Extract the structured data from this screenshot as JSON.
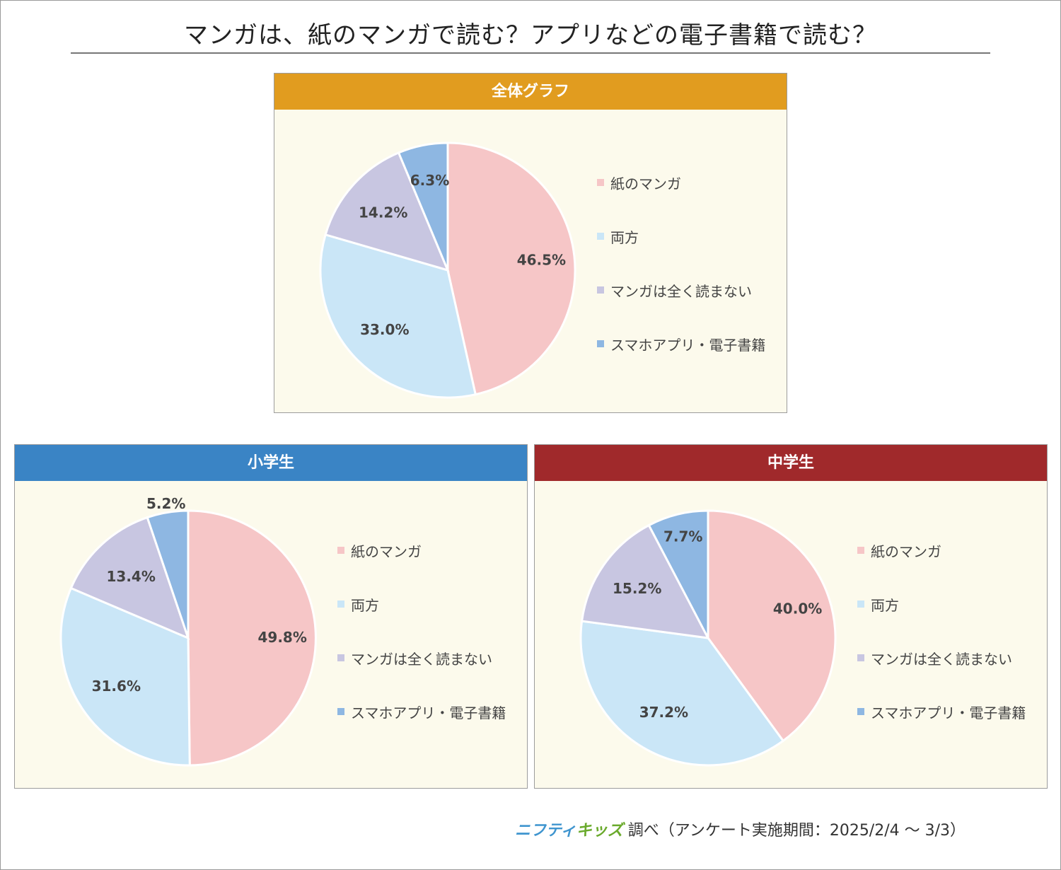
{
  "title": "マンガは、紙のマンガで読む？アプリなどの電子書籍で読む？",
  "colors": {
    "paper_manga": "#f6c6c7",
    "both": "#cae6f7",
    "no_manga": "#c8c6e1",
    "app_ebook": "#8eb7e2",
    "header_overall": "#e19c1f",
    "header_elementary": "#3a84c5",
    "header_junior_high": "#a0292b"
  },
  "chart_data": [
    {
      "type": "pie",
      "title": "全体グラフ",
      "categories": [
        "紙のマンガ",
        "両方",
        "マンガは全く読まない",
        "スマホアプリ・電子書籍"
      ],
      "values": [
        46.5,
        33.0,
        14.2,
        6.3
      ],
      "labels": [
        "46.5%",
        "33.0%",
        "14.2%",
        "6.3%"
      ]
    },
    {
      "type": "pie",
      "title": "小学生",
      "categories": [
        "紙のマンガ",
        "両方",
        "マンガは全く読まない",
        "スマホアプリ・電子書籍"
      ],
      "values": [
        49.8,
        31.6,
        13.4,
        5.2
      ],
      "labels": [
        "49.8%",
        "31.6%",
        "13.4%",
        "5.2%"
      ]
    },
    {
      "type": "pie",
      "title": "中学生",
      "categories": [
        "紙のマンガ",
        "両方",
        "マンガは全く読まない",
        "スマホアプリ・電子書籍"
      ],
      "values": [
        40.0,
        37.2,
        15.2,
        7.7
      ],
      "labels": [
        "40.0%",
        "37.2%",
        "15.2%",
        "7.7%"
      ]
    }
  ],
  "footer": {
    "logo_part1": "ニフティ",
    "logo_part2": "キッズ",
    "text": "調べ（アンケート実施期間：2025/2/4 ～ 3/3）"
  }
}
